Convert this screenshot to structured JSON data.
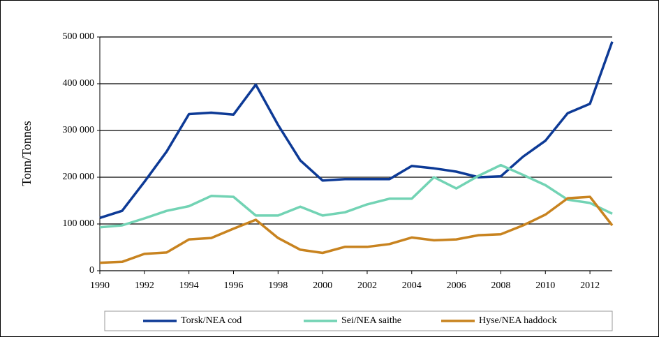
{
  "chart_data": {
    "type": "line",
    "y_label": "Tonn/Tonnes",
    "x": [
      1990,
      1991,
      1992,
      1993,
      1994,
      1995,
      1996,
      1997,
      1998,
      1999,
      2000,
      2001,
      2002,
      2003,
      2004,
      2005,
      2006,
      2007,
      2008,
      2009,
      2010,
      2011,
      2012,
      2013
    ],
    "series": [
      {
        "name": "Torsk/NEA cod",
        "color": "#0d3a96",
        "values": [
          113000,
          128000,
          190000,
          255000,
          335000,
          338000,
          334000,
          398000,
          312000,
          236000,
          193000,
          196000,
          196000,
          196000,
          224000,
          219000,
          212000,
          200000,
          202000,
          244000,
          278000,
          337000,
          357000,
          490000
        ]
      },
      {
        "name": "Sei/NEA saithe",
        "color": "#72d3b4",
        "values": [
          93000,
          97000,
          112000,
          128000,
          138000,
          160000,
          158000,
          118000,
          118000,
          137000,
          118000,
          125000,
          142000,
          154000,
          154000,
          200000,
          176000,
          203000,
          226000,
          205000,
          183000,
          152000,
          145000,
          122000
        ]
      },
      {
        "name": "Hyse/NEA haddock",
        "color": "#c8831f",
        "values": [
          17000,
          19000,
          36000,
          39000,
          67000,
          70000,
          90000,
          109000,
          70000,
          45000,
          38000,
          51000,
          51000,
          57000,
          71000,
          65000,
          67000,
          76000,
          78000,
          97000,
          120000,
          155000,
          158000,
          97000
        ]
      }
    ],
    "xlim": [
      1990,
      2013
    ],
    "xticks": [
      1990,
      1992,
      1994,
      1996,
      1998,
      2000,
      2002,
      2004,
      2006,
      2008,
      2010,
      2012
    ],
    "ylim": [
      0,
      500000
    ],
    "yticks": [
      0,
      {
        "value": 100000,
        "label": "100 000"
      },
      {
        "value": 200000,
        "label": "200 000"
      },
      {
        "value": 300000,
        "label": "300 000"
      },
      {
        "value": 400000,
        "label": "400 000"
      },
      {
        "value": 500000,
        "label": "500 000"
      }
    ],
    "grid": true,
    "legend": "bottom"
  }
}
